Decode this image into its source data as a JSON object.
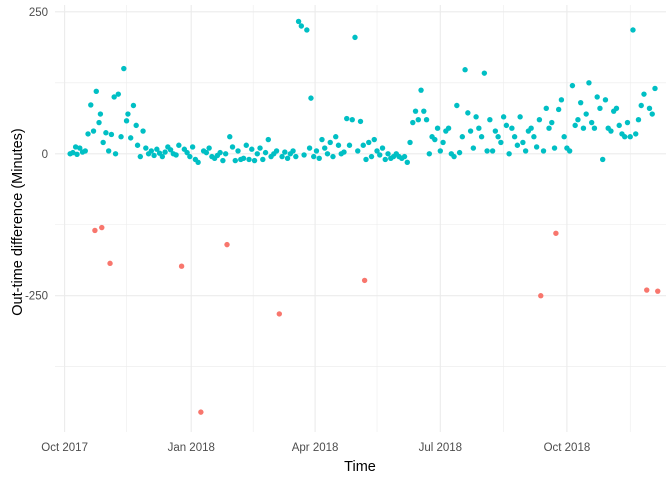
{
  "chart_data": {
    "type": "scatter",
    "xlabel": "Time",
    "ylabel": "Out-time difference (Minutes)",
    "x_ticks": [
      "Oct 2017",
      "Jan 2018",
      "Apr 2018",
      "Jul 2018",
      "Oct 2018"
    ],
    "y_ticks": [
      "250",
      "0",
      "-250"
    ],
    "xlim": [
      "2017-09-24",
      "2018-12-12"
    ],
    "ylim": [
      -490,
      262
    ],
    "grid": true,
    "legend": "none",
    "colors": {
      "positive": "#00bfc4",
      "negative": "#f8766d"
    },
    "series": [
      {
        "color": "#f8766d",
        "points": [
          [
            "2017-10-23",
            -135
          ],
          [
            "2017-10-28",
            -130
          ],
          [
            "2017-11-03",
            -193
          ],
          [
            "2017-12-25",
            -198
          ],
          [
            "2018-01-08",
            -455
          ],
          [
            "2018-01-27",
            -160
          ],
          [
            "2018-03-06",
            -282
          ],
          [
            "2018-05-07",
            -223
          ],
          [
            "2018-09-12",
            -250
          ],
          [
            "2018-09-23",
            -140
          ],
          [
            "2018-11-28",
            -240
          ],
          [
            "2018-12-06",
            -242
          ]
        ]
      },
      {
        "color": "#00bfc4",
        "points": [
          [
            "2017-10-05",
            0
          ],
          [
            "2017-10-07",
            2
          ],
          [
            "2017-10-09",
            12
          ],
          [
            "2017-10-10",
            -1
          ],
          [
            "2017-10-12",
            10
          ],
          [
            "2017-10-14",
            3
          ],
          [
            "2017-10-16",
            5
          ],
          [
            "2017-10-18",
            35
          ],
          [
            "2017-10-20",
            86
          ],
          [
            "2017-10-22",
            40
          ],
          [
            "2017-10-24",
            110
          ],
          [
            "2017-10-26",
            55
          ],
          [
            "2017-10-27",
            70
          ],
          [
            "2017-10-29",
            20
          ],
          [
            "2017-10-31",
            37
          ],
          [
            "2017-11-02",
            5
          ],
          [
            "2017-11-04",
            34
          ],
          [
            "2017-11-06",
            100
          ],
          [
            "2017-11-07",
            0
          ],
          [
            "2017-11-09",
            105
          ],
          [
            "2017-11-11",
            30
          ],
          [
            "2017-11-13",
            150
          ],
          [
            "2017-11-15",
            58
          ],
          [
            "2017-11-16",
            70
          ],
          [
            "2017-11-18",
            28
          ],
          [
            "2017-11-20",
            85
          ],
          [
            "2017-11-22",
            50
          ],
          [
            "2017-11-23",
            15
          ],
          [
            "2017-11-25",
            -5
          ],
          [
            "2017-11-27",
            40
          ],
          [
            "2017-11-29",
            10
          ],
          [
            "2017-12-01",
            0
          ],
          [
            "2017-12-03",
            5
          ],
          [
            "2017-12-05",
            -3
          ],
          [
            "2017-12-07",
            8
          ],
          [
            "2017-12-09",
            1
          ],
          [
            "2017-12-11",
            -5
          ],
          [
            "2017-12-13",
            3
          ],
          [
            "2017-12-15",
            12
          ],
          [
            "2017-12-17",
            7
          ],
          [
            "2017-12-19",
            0
          ],
          [
            "2017-12-21",
            -2
          ],
          [
            "2017-12-23",
            15
          ],
          [
            "2017-12-27",
            8
          ],
          [
            "2017-12-29",
            2
          ],
          [
            "2017-12-31",
            -5
          ],
          [
            "2018-01-02",
            12
          ],
          [
            "2018-01-04",
            -10
          ],
          [
            "2018-01-06",
            -15
          ],
          [
            "2018-01-10",
            5
          ],
          [
            "2018-01-12",
            2
          ],
          [
            "2018-01-14",
            10
          ],
          [
            "2018-01-16",
            -5
          ],
          [
            "2018-01-18",
            -8
          ],
          [
            "2018-01-20",
            -3
          ],
          [
            "2018-01-22",
            2
          ],
          [
            "2018-01-24",
            -12
          ],
          [
            "2018-01-26",
            0
          ],
          [
            "2018-01-29",
            30
          ],
          [
            "2018-01-31",
            12
          ],
          [
            "2018-02-02",
            -12
          ],
          [
            "2018-02-04",
            5
          ],
          [
            "2018-02-06",
            -10
          ],
          [
            "2018-02-08",
            -8
          ],
          [
            "2018-02-10",
            15
          ],
          [
            "2018-02-12",
            -10
          ],
          [
            "2018-02-14",
            8
          ],
          [
            "2018-02-16",
            -12
          ],
          [
            "2018-02-18",
            0
          ],
          [
            "2018-02-20",
            10
          ],
          [
            "2018-02-22",
            -10
          ],
          [
            "2018-02-24",
            2
          ],
          [
            "2018-02-26",
            25
          ],
          [
            "2018-02-28",
            -5
          ],
          [
            "2018-03-02",
            0
          ],
          [
            "2018-03-04",
            5
          ],
          [
            "2018-03-08",
            -5
          ],
          [
            "2018-03-10",
            3
          ],
          [
            "2018-03-12",
            -8
          ],
          [
            "2018-03-14",
            0
          ],
          [
            "2018-03-16",
            5
          ],
          [
            "2018-03-18",
            -5
          ],
          [
            "2018-03-20",
            233
          ],
          [
            "2018-03-22",
            225
          ],
          [
            "2018-03-24",
            -2
          ],
          [
            "2018-03-26",
            218
          ],
          [
            "2018-03-28",
            10
          ],
          [
            "2018-03-29",
            98
          ],
          [
            "2018-03-31",
            -5
          ],
          [
            "2018-04-02",
            5
          ],
          [
            "2018-04-04",
            -8
          ],
          [
            "2018-04-06",
            25
          ],
          [
            "2018-04-08",
            10
          ],
          [
            "2018-04-10",
            0
          ],
          [
            "2018-04-12",
            20
          ],
          [
            "2018-04-14",
            -5
          ],
          [
            "2018-04-16",
            30
          ],
          [
            "2018-04-18",
            15
          ],
          [
            "2018-04-20",
            0
          ],
          [
            "2018-04-22",
            3
          ],
          [
            "2018-04-24",
            62
          ],
          [
            "2018-04-26",
            15
          ],
          [
            "2018-04-28",
            60
          ],
          [
            "2018-04-30",
            205
          ],
          [
            "2018-05-02",
            5
          ],
          [
            "2018-05-04",
            57
          ],
          [
            "2018-05-06",
            15
          ],
          [
            "2018-05-08",
            -10
          ],
          [
            "2018-05-10",
            20
          ],
          [
            "2018-05-12",
            -5
          ],
          [
            "2018-05-14",
            25
          ],
          [
            "2018-05-16",
            5
          ],
          [
            "2018-05-18",
            -2
          ],
          [
            "2018-05-20",
            10
          ],
          [
            "2018-05-22",
            -10
          ],
          [
            "2018-05-24",
            0
          ],
          [
            "2018-05-26",
            -8
          ],
          [
            "2018-05-28",
            -5
          ],
          [
            "2018-05-30",
            0
          ],
          [
            "2018-06-01",
            -5
          ],
          [
            "2018-06-03",
            -8
          ],
          [
            "2018-06-05",
            -5
          ],
          [
            "2018-06-07",
            -15
          ],
          [
            "2018-06-09",
            20
          ],
          [
            "2018-06-11",
            55
          ],
          [
            "2018-06-13",
            75
          ],
          [
            "2018-06-15",
            60
          ],
          [
            "2018-06-17",
            112
          ],
          [
            "2018-06-19",
            75
          ],
          [
            "2018-06-21",
            60
          ],
          [
            "2018-06-23",
            0
          ],
          [
            "2018-06-25",
            30
          ],
          [
            "2018-06-27",
            25
          ],
          [
            "2018-06-29",
            45
          ],
          [
            "2018-07-01",
            5
          ],
          [
            "2018-07-03",
            20
          ],
          [
            "2018-07-05",
            40
          ],
          [
            "2018-07-07",
            45
          ],
          [
            "2018-07-09",
            0
          ],
          [
            "2018-07-11",
            -5
          ],
          [
            "2018-07-13",
            85
          ],
          [
            "2018-07-15",
            2
          ],
          [
            "2018-07-17",
            30
          ],
          [
            "2018-07-19",
            148
          ],
          [
            "2018-07-21",
            72
          ],
          [
            "2018-07-23",
            40
          ],
          [
            "2018-07-25",
            10
          ],
          [
            "2018-07-27",
            65
          ],
          [
            "2018-07-29",
            45
          ],
          [
            "2018-07-31",
            30
          ],
          [
            "2018-08-02",
            142
          ],
          [
            "2018-08-04",
            5
          ],
          [
            "2018-08-06",
            60
          ],
          [
            "2018-08-08",
            5
          ],
          [
            "2018-08-10",
            40
          ],
          [
            "2018-08-12",
            30
          ],
          [
            "2018-08-14",
            20
          ],
          [
            "2018-08-16",
            65
          ],
          [
            "2018-08-18",
            50
          ],
          [
            "2018-08-20",
            0
          ],
          [
            "2018-08-22",
            45
          ],
          [
            "2018-08-24",
            30
          ],
          [
            "2018-08-26",
            15
          ],
          [
            "2018-08-28",
            65
          ],
          [
            "2018-08-30",
            20
          ],
          [
            "2018-09-01",
            5
          ],
          [
            "2018-09-03",
            40
          ],
          [
            "2018-09-05",
            45
          ],
          [
            "2018-09-07",
            30
          ],
          [
            "2018-09-09",
            12
          ],
          [
            "2018-09-11",
            60
          ],
          [
            "2018-09-14",
            5
          ],
          [
            "2018-09-16",
            80
          ],
          [
            "2018-09-18",
            45
          ],
          [
            "2018-09-20",
            55
          ],
          [
            "2018-09-22",
            10
          ],
          [
            "2018-09-25",
            78
          ],
          [
            "2018-09-27",
            95
          ],
          [
            "2018-09-29",
            30
          ],
          [
            "2018-10-01",
            10
          ],
          [
            "2018-10-03",
            5
          ],
          [
            "2018-10-05",
            120
          ],
          [
            "2018-10-07",
            50
          ],
          [
            "2018-10-09",
            60
          ],
          [
            "2018-10-11",
            90
          ],
          [
            "2018-10-13",
            45
          ],
          [
            "2018-10-15",
            70
          ],
          [
            "2018-10-17",
            125
          ],
          [
            "2018-10-19",
            55
          ],
          [
            "2018-10-21",
            45
          ],
          [
            "2018-10-23",
            100
          ],
          [
            "2018-10-25",
            80
          ],
          [
            "2018-10-27",
            -10
          ],
          [
            "2018-10-29",
            95
          ],
          [
            "2018-10-31",
            45
          ],
          [
            "2018-11-02",
            40
          ],
          [
            "2018-11-04",
            75
          ],
          [
            "2018-11-06",
            80
          ],
          [
            "2018-11-08",
            50
          ],
          [
            "2018-11-10",
            35
          ],
          [
            "2018-11-12",
            30
          ],
          [
            "2018-11-14",
            55
          ],
          [
            "2018-11-16",
            30
          ],
          [
            "2018-11-18",
            218
          ],
          [
            "2018-11-20",
            35
          ],
          [
            "2018-11-22",
            60
          ],
          [
            "2018-11-24",
            85
          ],
          [
            "2018-11-26",
            105
          ],
          [
            "2018-11-30",
            80
          ],
          [
            "2018-12-02",
            70
          ],
          [
            "2018-12-04",
            115
          ]
        ]
      }
    ]
  }
}
